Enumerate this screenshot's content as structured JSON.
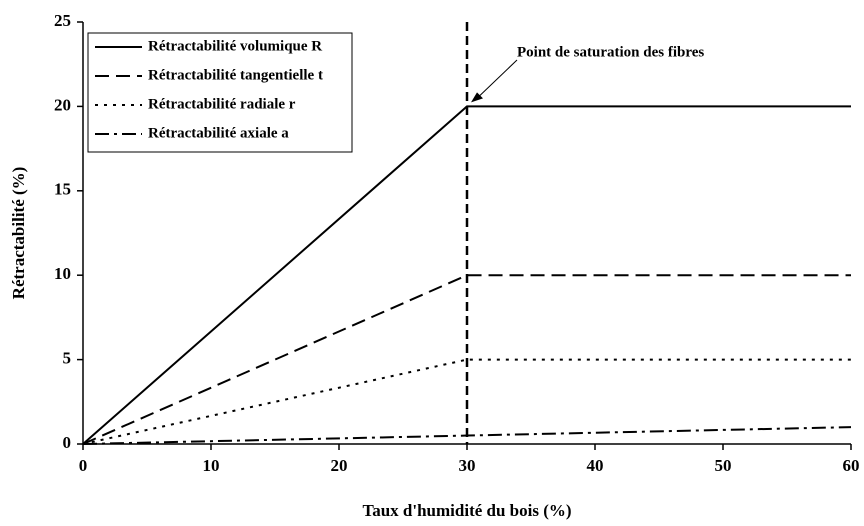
{
  "chart_data": {
    "type": "line",
    "xlabel": "Taux d'humidité du bois (%)",
    "ylabel": "Rétractabilité (%)",
    "x": [
      0,
      30,
      60
    ],
    "series": [
      {
        "name": "Rétractabilité volumique R",
        "color": "#000000",
        "dash": "solid",
        "values": [
          0,
          20,
          20
        ]
      },
      {
        "name": "Rétractabilité tangentielle t",
        "color": "#000000",
        "dash": "dashed",
        "values": [
          0,
          10,
          10
        ]
      },
      {
        "name": "Rétractabilité radiale r",
        "color": "#000000",
        "dash": "dotted",
        "values": [
          0,
          5,
          5
        ]
      },
      {
        "name": "Rétractabilité axiale a",
        "color": "#000000",
        "dash": "dashdot",
        "values": [
          0,
          0.5,
          1
        ]
      }
    ],
    "annotations": [
      {
        "text": "Point de saturation des fibres",
        "x": 30,
        "y": 20
      }
    ],
    "xlim": [
      0,
      60
    ],
    "xticks": [
      0,
      10,
      20,
      30,
      40,
      50,
      60
    ],
    "ylim": [
      0,
      25
    ],
    "yticks": [
      0,
      5,
      10,
      15,
      20,
      25
    ],
    "legend": "upper left"
  }
}
